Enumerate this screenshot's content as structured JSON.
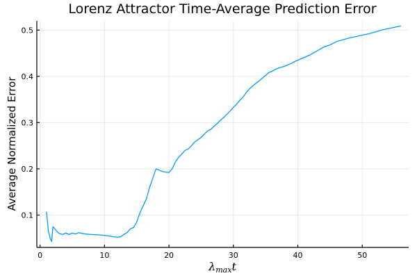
{
  "chart_data": {
    "type": "line",
    "title": "Lorenz Attractor Time-Average Prediction Error",
    "ylabel": "Average Normalized Error",
    "xlabel": {
      "base": "λ",
      "subscript": "max",
      "suffix": "t"
    },
    "xlim": [
      -0.5,
      57.2
    ],
    "ylim": [
      0.03,
      0.52
    ],
    "xticks": [
      0,
      10,
      20,
      30,
      40,
      50
    ],
    "yticks": [
      0.1,
      0.2,
      0.3,
      0.4,
      0.5
    ],
    "grid": true,
    "legend": "none",
    "color": "#009AFA",
    "series": [
      {
        "x": [
          1.0,
          1.3,
          1.6,
          1.8,
          2.0,
          2.3,
          2.7,
          3.0,
          3.5,
          4.0,
          4.5,
          5.0,
          5.5,
          6.0,
          7.0,
          8.0,
          9.0,
          10.0,
          11.0,
          12.0,
          12.5,
          13.0,
          13.5,
          14.0,
          14.5,
          15.0,
          15.5,
          16.0,
          16.5,
          17.0,
          17.5,
          18.0,
          18.5,
          19.0,
          19.5,
          20.0,
          20.5,
          21.0,
          21.5,
          22.0,
          22.5,
          23.0,
          23.5,
          24.0,
          24.5,
          25.0,
          25.5,
          26.0,
          26.5,
          27.0,
          27.5,
          28.0,
          28.5,
          29.0,
          29.5,
          30.0,
          30.5,
          31.0,
          31.5,
          32.0,
          32.5,
          33.0,
          33.5,
          34.0,
          34.5,
          35.0,
          35.5,
          36.0,
          36.5,
          37.0,
          37.5,
          38.0,
          38.5,
          39.0,
          39.5,
          40.0,
          41.0,
          42.0,
          43.0,
          44.0,
          45.0,
          46.0,
          47.0,
          48.0,
          49.0,
          50.0,
          51.0,
          52.0,
          53.0,
          54.0,
          55.0,
          56.0
        ],
        "y": [
          0.107,
          0.065,
          0.048,
          0.043,
          0.075,
          0.07,
          0.063,
          0.06,
          0.058,
          0.061,
          0.058,
          0.061,
          0.059,
          0.062,
          0.059,
          0.058,
          0.057,
          0.056,
          0.054,
          0.052,
          0.053,
          0.058,
          0.062,
          0.07,
          0.073,
          0.085,
          0.105,
          0.12,
          0.135,
          0.16,
          0.18,
          0.2,
          0.197,
          0.194,
          0.193,
          0.192,
          0.2,
          0.215,
          0.225,
          0.232,
          0.24,
          0.243,
          0.25,
          0.258,
          0.263,
          0.268,
          0.275,
          0.282,
          0.285,
          0.292,
          0.298,
          0.305,
          0.311,
          0.318,
          0.325,
          0.333,
          0.34,
          0.348,
          0.355,
          0.365,
          0.373,
          0.379,
          0.385,
          0.39,
          0.396,
          0.402,
          0.408,
          0.411,
          0.415,
          0.418,
          0.42,
          0.422,
          0.425,
          0.428,
          0.432,
          0.435,
          0.441,
          0.447,
          0.455,
          0.463,
          0.468,
          0.475,
          0.479,
          0.483,
          0.486,
          0.489,
          0.492,
          0.496,
          0.5,
          0.503,
          0.506,
          0.509
        ]
      }
    ]
  }
}
